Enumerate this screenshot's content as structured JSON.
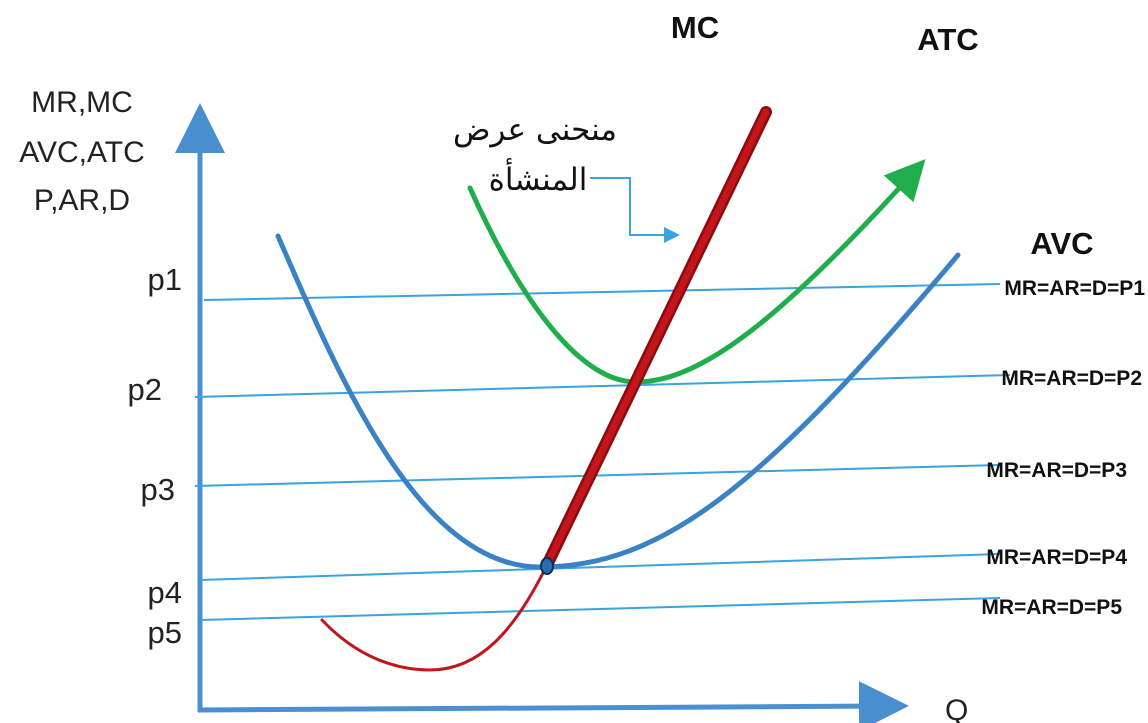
{
  "axes": {
    "y_title_lines": [
      "MR,MC",
      "AVC,ATC",
      "P,AR,D"
    ],
    "x_title": "Q"
  },
  "price_levels": [
    {
      "label": "p1",
      "line_label": "MR=AR=D=P1"
    },
    {
      "label": "p2",
      "line_label": "MR=AR=D=P2"
    },
    {
      "label": "p3",
      "line_label": "MR=AR=D=P3"
    },
    {
      "label": "p4",
      "line_label": "MR=AR=D=P4"
    },
    {
      "label": "p5",
      "line_label": "MR=AR=D=P5"
    }
  ],
  "curves": {
    "mc": "MC",
    "atc": "ATC",
    "avc": "AVC"
  },
  "annotation": {
    "line1": "منحنى عرض",
    "line2": "المنشأة"
  },
  "colors": {
    "axis": "#4a90d0",
    "price_line": "#3aa3e0",
    "avc": "#3b82c4",
    "atc": "#1fae4b",
    "mc": "#c0161c",
    "mc_lower": "#c0161c"
  }
}
